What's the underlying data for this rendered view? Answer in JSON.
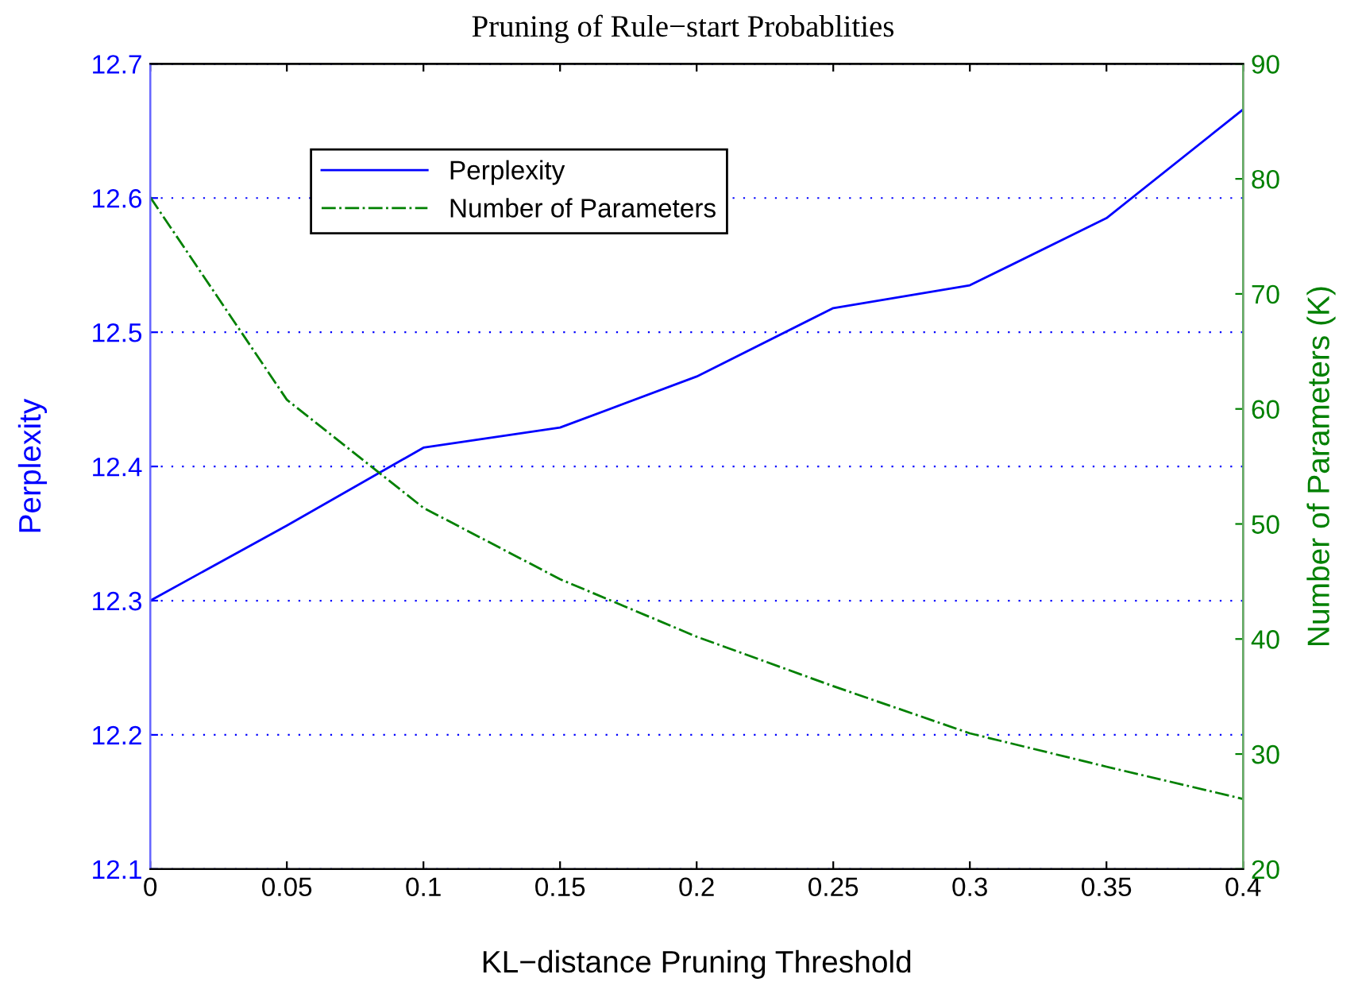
{
  "chart_data": {
    "type": "line",
    "title": "Pruning of Rule−start Probablities",
    "xlabel": "KL−distance Pruning Threshold",
    "ylabel": "Perplexity",
    "y2label": "Number of Parameters (K)",
    "x": [
      0,
      0.05,
      0.1,
      0.15,
      0.2,
      0.25,
      0.3,
      0.35,
      0.4
    ],
    "series": [
      {
        "name": "Perplexity",
        "color": "#0000ff",
        "line_style": "solid",
        "values": [
          12.3,
          12.356,
          12.414,
          12.429,
          12.467,
          12.518,
          12.535,
          12.585,
          12.666
        ]
      },
      {
        "name": "Number of Parameters",
        "color": "#008000",
        "line_style": "dashdot",
        "axis": "y2",
        "values": [
          78.4,
          60.8,
          51.4,
          45.2,
          40.2,
          35.9,
          31.8,
          28.9,
          26.1
        ]
      }
    ],
    "xlim": [
      0,
      0.4
    ],
    "xticks": [
      0,
      0.05,
      0.1,
      0.15,
      0.2,
      0.25,
      0.3,
      0.35,
      0.4
    ],
    "ylim": [
      12.1,
      12.7
    ],
    "yticks": [
      12.1,
      12.2,
      12.3,
      12.4,
      12.5,
      12.6,
      12.7
    ],
    "y2lim": [
      20,
      90
    ],
    "y2ticks": [
      20,
      30,
      40,
      50,
      60,
      70,
      80,
      90
    ],
    "grid": "y",
    "legend": "top left"
  }
}
